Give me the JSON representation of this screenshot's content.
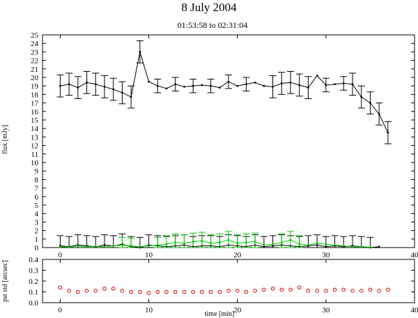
{
  "chart_data": [
    {
      "type": "line",
      "title": "8 July 2004",
      "subtitle": "01:53:58 to 02:31:04",
      "xlabel": "",
      "ylabel": "flux [mJy]",
      "xlim": [
        -2,
        40
      ],
      "ylim": [
        0,
        25
      ],
      "xticks": [
        0,
        10,
        20,
        30,
        40
      ],
      "yticks": [
        0,
        1,
        2,
        3,
        4,
        5,
        6,
        7,
        8,
        9,
        10,
        11,
        12,
        13,
        14,
        15,
        16,
        17,
        18,
        19,
        20,
        21,
        22,
        23,
        24,
        25
      ],
      "grid": false,
      "series": [
        {
          "color": "#000000",
          "x": [
            0,
            1,
            2,
            3,
            4,
            5,
            6,
            7,
            8,
            9,
            10,
            11,
            12,
            13,
            14,
            15,
            16,
            17,
            18,
            19,
            20,
            21,
            22,
            23,
            24,
            25,
            26,
            27,
            28,
            29,
            30,
            31,
            32,
            33,
            34,
            35,
            36,
            37
          ],
          "y": [
            19.0,
            19.2,
            18.8,
            19.4,
            19.2,
            18.9,
            18.6,
            18.2,
            17.7,
            23.0,
            19.5,
            19.0,
            18.7,
            19.2,
            18.9,
            19.0,
            19.1,
            19.0,
            18.8,
            19.5,
            19.0,
            19.2,
            19.4,
            19.0,
            18.9,
            19.3,
            19.4,
            19.1,
            18.8,
            20.2,
            19.1,
            19.2,
            19.3,
            19.2,
            17.7,
            17.0,
            15.7,
            13.5
          ],
          "err": [
            1.3,
            1.3,
            1.3,
            1.3,
            1.3,
            1.3,
            1.3,
            1.3,
            1.3,
            1.3,
            0,
            0.8,
            0,
            0.8,
            0,
            0.8,
            0,
            0.8,
            0,
            0.8,
            0,
            0.8,
            0,
            0,
            1.3,
            1.3,
            1.3,
            1.3,
            1.3,
            0,
            0.8,
            0,
            0.8,
            1.3,
            1.3,
            1.3,
            1.3,
            1.3
          ]
        },
        {
          "color": "#000000",
          "x": [
            0,
            1,
            2,
            3,
            4,
            5,
            6,
            7,
            8,
            9,
            10,
            11,
            12,
            13,
            14,
            15,
            16,
            17,
            18,
            19,
            20,
            21,
            22,
            23,
            24,
            25,
            26,
            27,
            28,
            29,
            30,
            31,
            32,
            33,
            34,
            35,
            36
          ],
          "y": [
            0.2,
            0.1,
            0.3,
            0.2,
            0.1,
            0.3,
            0.2,
            0.4,
            0.1,
            0.0,
            0.3,
            0.2,
            0.1,
            0.2,
            0.3,
            0.1,
            0.2,
            0.2,
            0.1,
            0.3,
            0.2,
            0.1,
            0.3,
            0.1,
            0.2,
            0.3,
            0.2,
            0.1,
            0.2,
            0.3,
            0.1,
            0.2,
            0.1,
            0.2,
            0.1,
            0.0,
            0.1
          ],
          "err": [
            1.2,
            1.2,
            1.2,
            1.2,
            1.2,
            1.2,
            1.2,
            1.2,
            1.2,
            1.2,
            1.2,
            1.2,
            1.2,
            1.2,
            1.2,
            1.2,
            1.2,
            1.2,
            1.2,
            1.2,
            1.2,
            1.2,
            1.2,
            1.2,
            1.2,
            1.2,
            1.2,
            1.2,
            1.2,
            1.2,
            1.2,
            1.2,
            1.2,
            1.2,
            1.2,
            1.2,
            0
          ]
        },
        {
          "color": "#00cc00",
          "x": [
            0,
            1,
            2,
            3,
            4,
            5,
            6,
            7,
            8,
            9,
            10,
            11,
            12,
            13,
            14,
            15,
            16,
            17,
            18,
            19,
            20,
            21,
            22,
            23,
            24,
            25,
            26,
            27,
            28,
            29,
            30,
            31,
            32,
            33,
            34,
            35
          ],
          "y": [
            0.1,
            0.05,
            0.2,
            0.1,
            0.15,
            0.1,
            0.2,
            0.3,
            0.2,
            0.1,
            0.2,
            0.3,
            0.4,
            0.6,
            0.5,
            0.7,
            0.8,
            0.5,
            0.6,
            0.9,
            0.5,
            0.6,
            0.7,
            0.3,
            0.4,
            0.6,
            0.9,
            0.4,
            0.3,
            0.5,
            0.4,
            0.3,
            0.2,
            0.1,
            0.1,
            0.05
          ],
          "err": [
            0,
            0,
            0,
            0,
            0,
            0,
            0,
            0.9,
            0.9,
            0,
            0,
            0.9,
            1.0,
            1.0,
            1.0,
            1.0,
            1.0,
            1.0,
            1.0,
            1.0,
            1.0,
            1.0,
            1.0,
            0,
            0,
            1.0,
            1.0,
            1.0,
            0,
            0,
            0,
            0,
            0,
            0,
            0,
            0
          ]
        }
      ]
    },
    {
      "type": "scatter",
      "title": "",
      "xlabel": "time [min]",
      "ylabel": "pst std [arcsec]",
      "xlim": [
        -2,
        40
      ],
      "ylim": [
        0,
        0.4
      ],
      "xticks": [
        0,
        10,
        20,
        30,
        40
      ],
      "yticks": [
        0,
        0.1,
        0.2,
        0.3,
        0.4
      ],
      "grid": false,
      "series": [
        {
          "color": "#cc0000",
          "x": [
            0,
            1,
            2,
            3,
            4,
            5,
            6,
            7,
            8,
            9,
            10,
            11,
            12,
            13,
            14,
            15,
            16,
            17,
            18,
            19,
            20,
            21,
            22,
            23,
            24,
            25,
            26,
            27,
            28,
            29,
            30,
            31,
            32,
            33,
            34,
            35,
            36,
            37
          ],
          "y": [
            0.14,
            0.11,
            0.1,
            0.11,
            0.11,
            0.13,
            0.13,
            0.11,
            0.1,
            0.1,
            0.09,
            0.1,
            0.1,
            0.1,
            0.1,
            0.1,
            0.1,
            0.1,
            0.1,
            0.11,
            0.11,
            0.1,
            0.11,
            0.12,
            0.13,
            0.12,
            0.12,
            0.14,
            0.11,
            0.11,
            0.11,
            0.12,
            0.12,
            0.11,
            0.11,
            0.12,
            0.11,
            0.12
          ]
        }
      ]
    }
  ]
}
